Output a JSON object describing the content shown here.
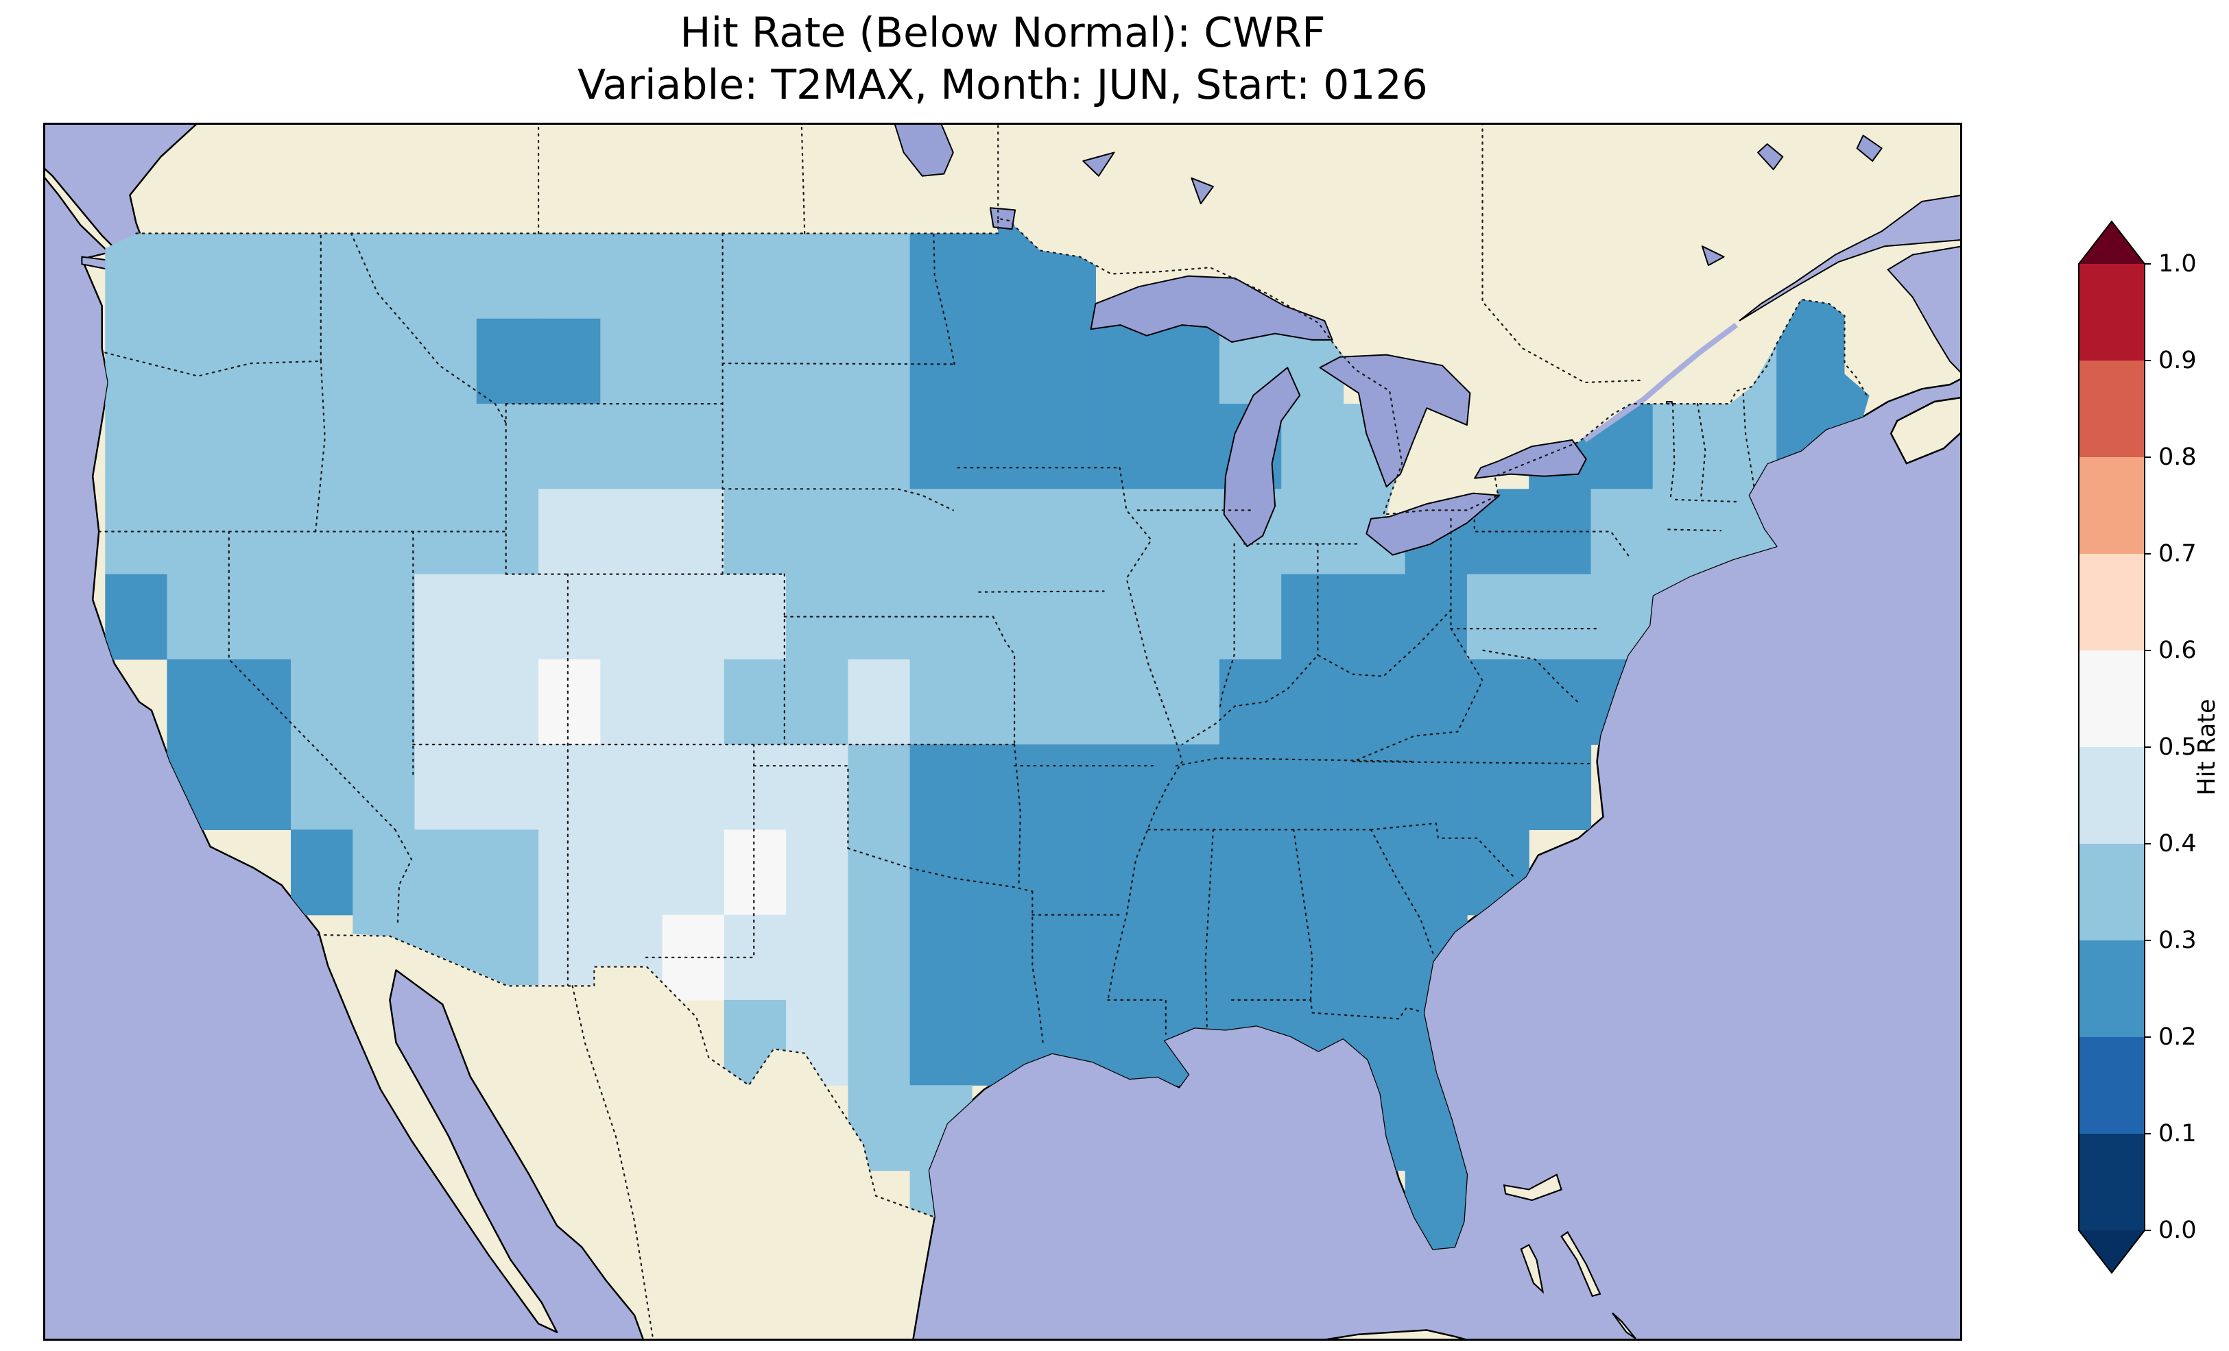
{
  "figure": {
    "title_line1": "Hit Rate (Below Normal): CWRF",
    "title_line2": "Variable: T2MAX, Month: JUN, Start: 0126"
  },
  "chart_data": {
    "type": "heatmap",
    "title": "Hit Rate (Below Normal): CWRF",
    "subtitle": "Variable: T2MAX, Month: JUN, Start: 0126",
    "model": "CWRF",
    "metric": "Hit Rate (Below Normal)",
    "variable": "T2MAX",
    "month": "JUN",
    "start": "0126",
    "region": "Continental United States",
    "colorbar": {
      "label": "Hit Rate",
      "orientation": "vertical",
      "extend": "both",
      "tick_labels": [
        "0.0",
        "0.1",
        "0.2",
        "0.3",
        "0.4",
        "0.5",
        "0.6",
        "0.7",
        "0.8",
        "0.9",
        "1.0"
      ],
      "under_color": "#053061",
      "over_color": "#67001f",
      "bins": [
        {
          "range": [
            0.0,
            0.1
          ],
          "color": "#0a3b70"
        },
        {
          "range": [
            0.1,
            0.2
          ],
          "color": "#2166ac"
        },
        {
          "range": [
            0.2,
            0.3
          ],
          "color": "#4393c3"
        },
        {
          "range": [
            0.3,
            0.4
          ],
          "color": "#92c5de"
        },
        {
          "range": [
            0.4,
            0.5
          ],
          "color": "#d1e5f0"
        },
        {
          "range": [
            0.5,
            0.6
          ],
          "color": "#f7f7f7"
        },
        {
          "range": [
            0.6,
            0.7
          ],
          "color": "#fddbc7"
        },
        {
          "range": [
            0.7,
            0.8
          ],
          "color": "#f4a582"
        },
        {
          "range": [
            0.8,
            0.9
          ],
          "color": "#d6604d"
        },
        {
          "range": [
            0.9,
            1.0
          ],
          "color": "#b2182b"
        }
      ]
    },
    "map": {
      "extent": {
        "lon_min": -126,
        "lon_max": -64,
        "lat_min": 23.0,
        "lat_max": 51.6
      },
      "ocean_color": "#a8afdc",
      "land_color": "#f2eed8",
      "lake_color": "#97a1d6",
      "grid": {
        "lon_origin": -126,
        "lat_origin": 51,
        "dlon": 2,
        "dlat": 2,
        "legend": "row strings top-to-bottom from lat 51; digit d>0 means hit-rate bin d covering (d-1)/10 to d/10; 0 = outside model domain",
        "rows": [
          "0000000000000033000000000000000",
          "0444444444444433300000000000330",
          "0444444334444433333440000004330",
          "0444444444444433333344003344330",
          "0444444455544444444444333444400",
          "0344445555554444444433344444000",
          "0033445565544544444333333300000",
          "0033445555555433333333333000000",
          "0000344455565433333333330000000",
          "0000044455655433333333300000000",
          "0000000000045433333333300000000",
          "0000000000000440000003300000000",
          "0000000000000040000000300000000",
          "0000000000000000000000000000000"
        ]
      }
    }
  }
}
